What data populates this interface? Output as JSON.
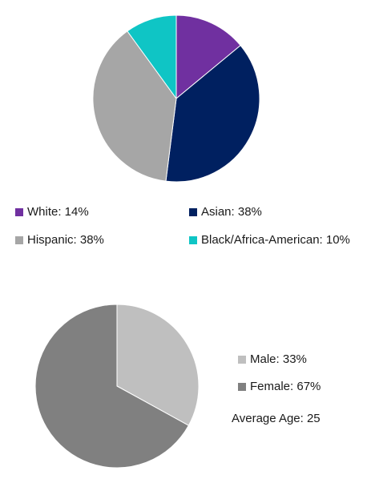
{
  "chart_data": [
    {
      "type": "pie",
      "title": "",
      "slices": [
        {
          "label": "White: 14%",
          "value": 14,
          "color": "#7030a0"
        },
        {
          "label": "Asian: 38%",
          "value": 38,
          "color": "#002060"
        },
        {
          "label": "Hispanic: 38%",
          "value": 38,
          "color": "#a6a6a6"
        },
        {
          "label": "Black/Africa-American: 10%",
          "value": 10,
          "color": "#0fc5c5"
        }
      ],
      "legend": "bottom",
      "start_angle_deg": 0,
      "direction": "clockwise"
    },
    {
      "type": "pie",
      "title": "",
      "slices": [
        {
          "label": "Male: 33%",
          "value": 33,
          "color": "#bfbfbf"
        },
        {
          "label": "Female: 67%",
          "value": 67,
          "color": "#808080"
        }
      ],
      "legend": "right",
      "start_angle_deg": 0,
      "direction": "clockwise"
    }
  ],
  "notes": {
    "average_age": "Average Age: 25"
  }
}
